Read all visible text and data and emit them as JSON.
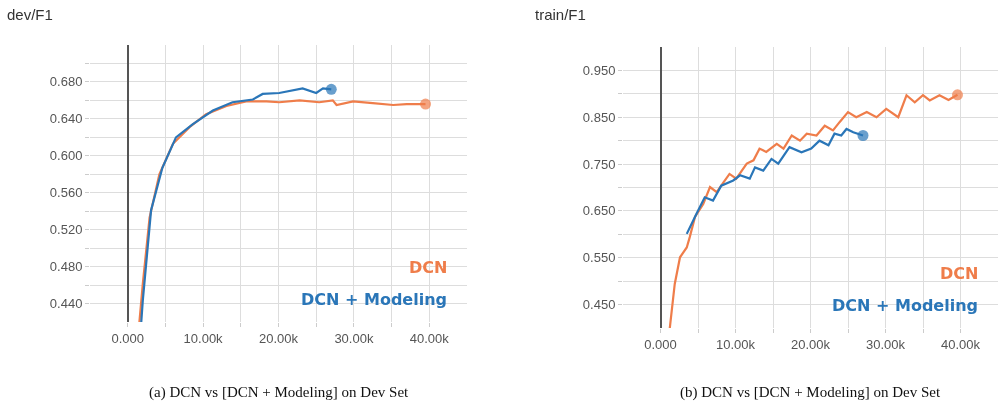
{
  "chart_data": [
    {
      "type": "line",
      "title": "dev/F1",
      "grid": true,
      "legend": "bottom right",
      "xlim": [
        -5000,
        45000
      ],
      "xticks": [
        {
          "value": 0,
          "label": "0.000"
        },
        {
          "value": 5000,
          "label": null
        },
        {
          "value": 10000,
          "label": "10.00k"
        },
        {
          "value": 15000,
          "label": null
        },
        {
          "value": 20000,
          "label": "20.00k"
        },
        {
          "value": 25000,
          "label": null
        },
        {
          "value": 30000,
          "label": "30.00k"
        },
        {
          "value": 35000,
          "label": null
        },
        {
          "value": 40000,
          "label": "40.00k"
        }
      ],
      "ylim": [
        0.42,
        0.72
      ],
      "yticks": [
        {
          "value": 0.44,
          "label": "0.440"
        },
        {
          "value": 0.46,
          "label": null
        },
        {
          "value": 0.48,
          "label": "0.480"
        },
        {
          "value": 0.5,
          "label": null
        },
        {
          "value": 0.52,
          "label": "0.520"
        },
        {
          "value": 0.54,
          "label": null
        },
        {
          "value": 0.56,
          "label": "0.560"
        },
        {
          "value": 0.58,
          "label": null
        },
        {
          "value": 0.6,
          "label": "0.600"
        },
        {
          "value": 0.62,
          "label": null
        },
        {
          "value": 0.64,
          "label": "0.640"
        },
        {
          "value": 0.66,
          "label": null
        },
        {
          "value": 0.68,
          "label": "0.680"
        },
        {
          "value": 0.7,
          "label": null
        }
      ],
      "series": [
        {
          "name": "DCN",
          "color": "#ef7d4a",
          "x": [
            1550,
            2000,
            2900,
            4200,
            6000,
            8200,
            10400,
            13100,
            15700,
            18400,
            20100,
            22800,
            25400,
            27200,
            27700,
            29900,
            32500,
            35200,
            37000,
            39500
          ],
          "values": [
            0.42,
            0.461,
            0.533,
            0.58,
            0.613,
            0.631,
            0.645,
            0.654,
            0.659,
            0.659,
            0.658,
            0.66,
            0.658,
            0.66,
            0.655,
            0.659,
            0.657,
            0.655,
            0.656,
            0.656
          ]
        },
        {
          "name": "DCN + Modeling",
          "color": "#2a76b8",
          "x": [
            1800,
            2000,
            3100,
            4600,
            6400,
            8600,
            11300,
            13900,
            16600,
            17900,
            20100,
            23200,
            25000,
            25900,
            27000
          ],
          "values": [
            0.42,
            0.443,
            0.541,
            0.587,
            0.62,
            0.634,
            0.649,
            0.658,
            0.661,
            0.667,
            0.668,
            0.673,
            0.668,
            0.673,
            0.672
          ]
        }
      ],
      "annotations": [
        "(a) DCN vs [DCN + Modeling] on Dev Set"
      ]
    },
    {
      "type": "line",
      "title": "train/F1",
      "grid": true,
      "legend": "bottom right",
      "xlim": [
        -5000,
        45000
      ],
      "xticks": [
        {
          "value": 0,
          "label": "0.000"
        },
        {
          "value": 5000,
          "label": null
        },
        {
          "value": 10000,
          "label": "10.00k"
        },
        {
          "value": 15000,
          "label": null
        },
        {
          "value": 20000,
          "label": "20.00k"
        },
        {
          "value": 25000,
          "label": null
        },
        {
          "value": 30000,
          "label": "30.00k"
        },
        {
          "value": 35000,
          "label": null
        },
        {
          "value": 40000,
          "label": "40.00k"
        }
      ],
      "ylim": [
        0.4,
        1.0
      ],
      "yticks": [
        {
          "value": 0.45,
          "label": "0.450"
        },
        {
          "value": 0.5,
          "label": null
        },
        {
          "value": 0.55,
          "label": "0.550"
        },
        {
          "value": 0.6,
          "label": null
        },
        {
          "value": 0.65,
          "label": "0.650"
        },
        {
          "value": 0.7,
          "label": null
        },
        {
          "value": 0.75,
          "label": "0.750"
        },
        {
          "value": 0.8,
          "label": null
        },
        {
          "value": 0.85,
          "label": "0.850"
        },
        {
          "value": 0.9,
          "label": null
        },
        {
          "value": 0.95,
          "label": "0.950"
        }
      ],
      "series": [
        {
          "name": "DCN",
          "color": "#ef7d4a",
          "x": [
            1240,
            1900,
            2600,
            3500,
            3900,
            4600,
            5700,
            6600,
            7500,
            8400,
            9200,
            10100,
            11500,
            12400,
            13200,
            14100,
            15500,
            16400,
            17500,
            18600,
            19500,
            20800,
            21900,
            23000,
            23900,
            25000,
            26100,
            27500,
            28800,
            30100,
            31700,
            32800,
            33900,
            35000,
            35900,
            37200,
            38400,
            39600
          ],
          "values": [
            0.4,
            0.494,
            0.551,
            0.572,
            0.594,
            0.637,
            0.665,
            0.701,
            0.69,
            0.711,
            0.729,
            0.719,
            0.751,
            0.758,
            0.783,
            0.776,
            0.793,
            0.783,
            0.811,
            0.8,
            0.815,
            0.811,
            0.832,
            0.822,
            0.84,
            0.861,
            0.85,
            0.861,
            0.85,
            0.868,
            0.85,
            0.897,
            0.882,
            0.897,
            0.886,
            0.897,
            0.887,
            0.898
          ]
        },
        {
          "name": "DCN + Modeling",
          "color": "#2a76b8",
          "x": [
            3500,
            4800,
            5900,
            7000,
            8100,
            9700,
            10600,
            11900,
            12600,
            13700,
            14800,
            15700,
            17200,
            18800,
            20100,
            21200,
            22400,
            23200,
            24100,
            24800,
            25700,
            27000
          ],
          "values": [
            0.601,
            0.644,
            0.679,
            0.672,
            0.704,
            0.715,
            0.726,
            0.719,
            0.743,
            0.736,
            0.761,
            0.751,
            0.786,
            0.775,
            0.783,
            0.8,
            0.79,
            0.815,
            0.811,
            0.825,
            0.818,
            0.811
          ]
        }
      ],
      "annotations": [
        "(b) DCN vs [DCN + Modeling] on Dev Set"
      ]
    }
  ]
}
